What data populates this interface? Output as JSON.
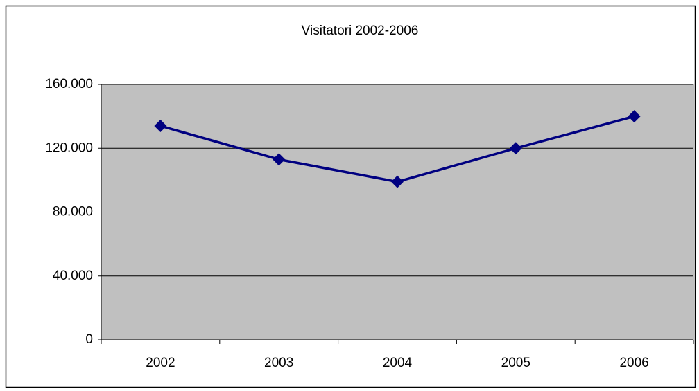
{
  "chart_data": {
    "type": "line",
    "title": "Visitatori 2002-2006",
    "categories": [
      "2002",
      "2003",
      "2004",
      "2005",
      "2006"
    ],
    "values": [
      134000,
      113000,
      99000,
      120000,
      140000
    ],
    "color": "#000080",
    "ylim": [
      0,
      160000
    ],
    "yticks": [
      0,
      {
        "value": 40000,
        "label": "40.000"
      },
      {
        "value": 80000,
        "label": "80.000"
      },
      {
        "value": 120000,
        "label": "120.000"
      },
      {
        "value": 160000,
        "label": "160.000"
      }
    ],
    "grid": true
  }
}
